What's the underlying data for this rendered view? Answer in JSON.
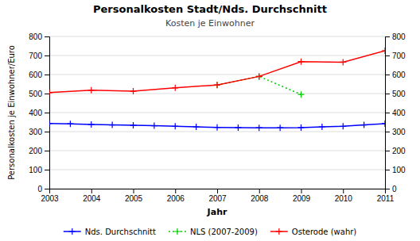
{
  "chart_data": {
    "type": "line",
    "title": "Personalkosten Stadt/Nds. Durchschnitt",
    "subtitle": "Kosten je Einwohner",
    "x_label": "Jahr",
    "y_label": "Personalkosten je Einwohner/Euro",
    "series": [
      {
        "name": "Nds. Durchschnitt",
        "color": "blue",
        "marker": "plus",
        "line_style": "solid",
        "x": [
          2003,
          2003.5,
          2004,
          2004.5,
          2005,
          2005.5,
          2006,
          2006.5,
          2007,
          2007.5,
          2008,
          2008.5,
          2009,
          2009.5,
          2010,
          2010.5,
          2011
        ],
        "values": [
          343,
          341,
          337,
          335,
          333,
          331,
          328,
          325,
          322,
          321,
          320,
          320,
          321,
          325,
          328,
          335,
          342
        ]
      },
      {
        "name": "NLS (2007-2009)",
        "color": "#00cc00",
        "marker": "plus",
        "line_style": "dotted",
        "x": [
          2007,
          2008,
          2009
        ],
        "values": [
          545,
          590,
          495
        ]
      },
      {
        "name": "Osterode (wahr)",
        "color": "red",
        "marker": "plus",
        "line_style": "solid",
        "x": [
          2003,
          2004,
          2005,
          2006,
          2007,
          2008,
          2009,
          2010,
          2011
        ],
        "values": [
          505,
          518,
          512,
          530,
          545,
          590,
          668,
          665,
          725
        ]
      }
    ],
    "xlim": [
      2003,
      2011
    ],
    "xticks": [
      2003,
      2004,
      2005,
      2006,
      2007,
      2008,
      2009,
      2010,
      2011
    ],
    "ylim": [
      0,
      800
    ],
    "yticks": [
      0,
      100,
      200,
      300,
      400,
      500,
      600,
      700,
      800
    ],
    "y2lim": [
      0,
      800
    ],
    "y2ticks": [
      0,
      100,
      200,
      300,
      400,
      500,
      600,
      700,
      800
    ],
    "grid": true,
    "legend": "bottom"
  }
}
